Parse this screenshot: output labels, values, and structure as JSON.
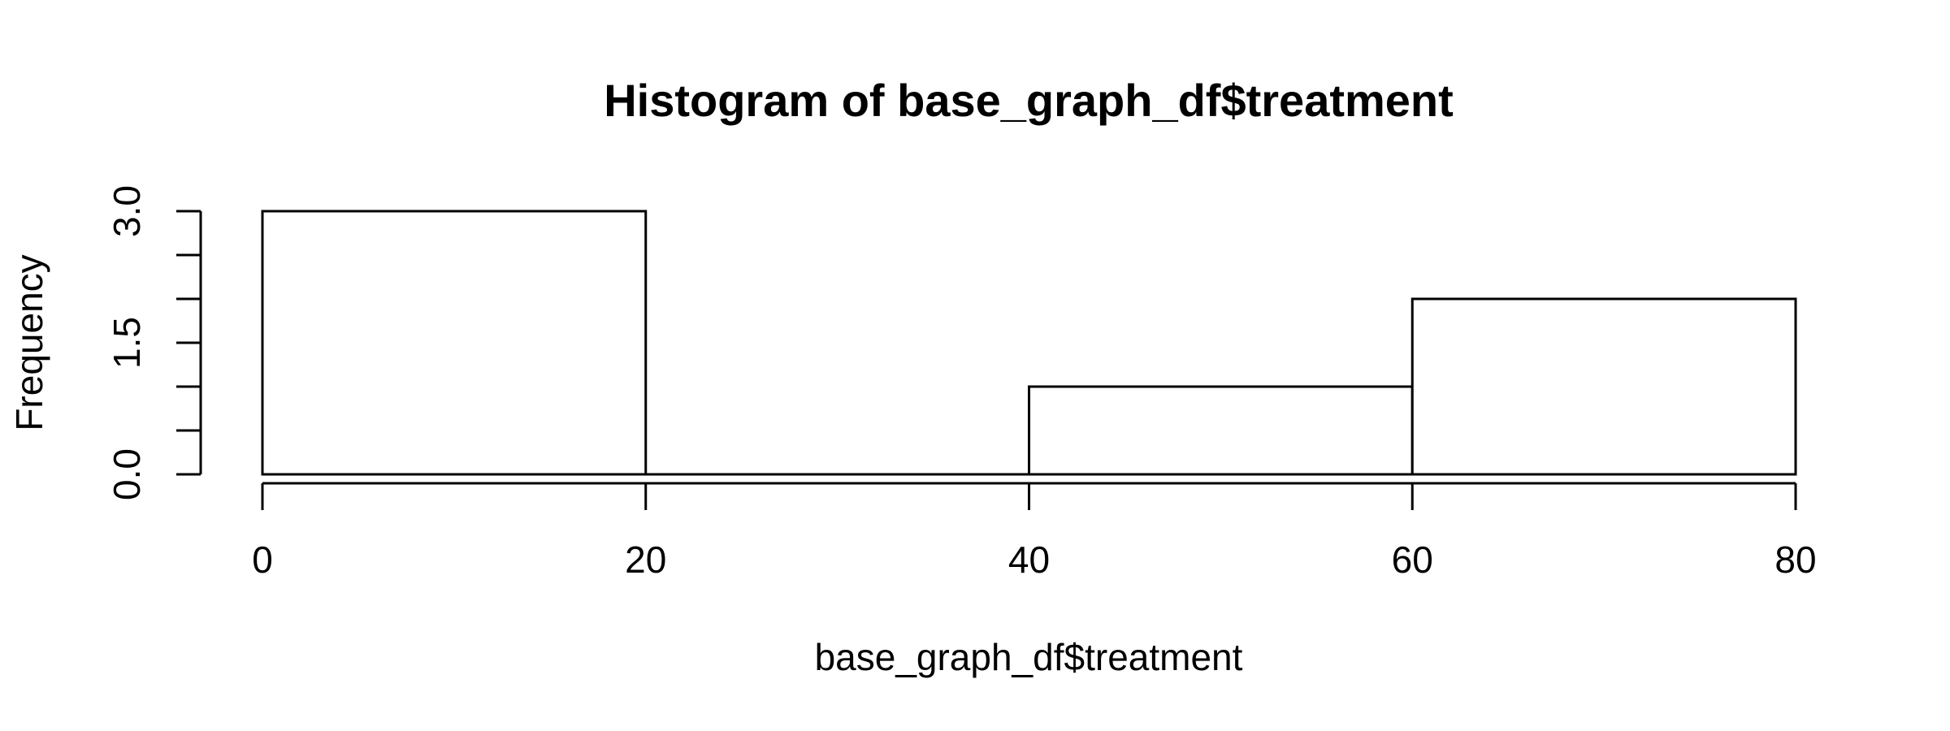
{
  "chart_data": {
    "type": "bar",
    "title": "Histogram of base_graph_df$treatment",
    "xlabel": "base_graph_df$treatment",
    "ylabel": "Frequency",
    "bins": [
      {
        "from": 0,
        "to": 20,
        "count": 3
      },
      {
        "from": 20,
        "to": 40,
        "count": 0
      },
      {
        "from": 40,
        "to": 60,
        "count": 1
      },
      {
        "from": 60,
        "to": 80,
        "count": 2
      }
    ],
    "xlim": [
      0,
      80
    ],
    "ylim": [
      0,
      3
    ],
    "x_ticks": [
      0,
      20,
      40,
      60,
      80
    ],
    "x_tick_labels": [
      "0",
      "20",
      "40",
      "60",
      "80"
    ],
    "y_ticks": [
      0,
      0.5,
      1,
      1.5,
      2,
      2.5,
      3
    ],
    "y_tick_labels": [
      "0.0",
      "",
      "",
      "1.5",
      "",
      "",
      "3.0"
    ],
    "grid": false,
    "legend": "none",
    "colors": {
      "bar_fill": "#ffffff",
      "bar_stroke": "#000000",
      "text": "#000000"
    }
  }
}
